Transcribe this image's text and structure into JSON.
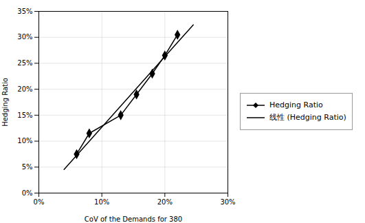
{
  "chart_data": {
    "type": "line",
    "xlabel": "CoV of the Demands for 380",
    "ylabel": "Hedging Ratio",
    "xlim": [
      0.0,
      0.3
    ],
    "ylim": [
      0.0,
      0.35
    ],
    "xticks": [
      {
        "value": 0.0,
        "label": "0%"
      },
      {
        "value": 0.1,
        "label": "10%"
      },
      {
        "value": 0.2,
        "label": "20%"
      },
      {
        "value": 0.3,
        "label": "30%"
      }
    ],
    "yticks": [
      {
        "value": 0.0,
        "label": "0%"
      },
      {
        "value": 0.05,
        "label": "5%"
      },
      {
        "value": 0.1,
        "label": "10%"
      },
      {
        "value": 0.15,
        "label": "15%"
      },
      {
        "value": 0.2,
        "label": "20%"
      },
      {
        "value": 0.25,
        "label": "25%"
      },
      {
        "value": 0.3,
        "label": "30%"
      },
      {
        "value": 0.35,
        "label": "35%"
      }
    ],
    "grid": true,
    "legend": "right",
    "series": [
      {
        "name": "Hedging Ratio",
        "color": "#000000",
        "marker": "diamond",
        "line_style": "solid",
        "x": [
          0.06,
          0.08,
          0.13,
          0.155,
          0.18,
          0.2,
          0.22
        ],
        "values": [
          0.075,
          0.115,
          0.15,
          0.19,
          0.23,
          0.265,
          0.305
        ]
      },
      {
        "name": "线性 (Hedging Ratio)",
        "color": "#000000",
        "line_style": "solid",
        "x": [
          0.04,
          0.245
        ],
        "values": [
          0.04538,
          0.32395
        ]
      }
    ]
  }
}
